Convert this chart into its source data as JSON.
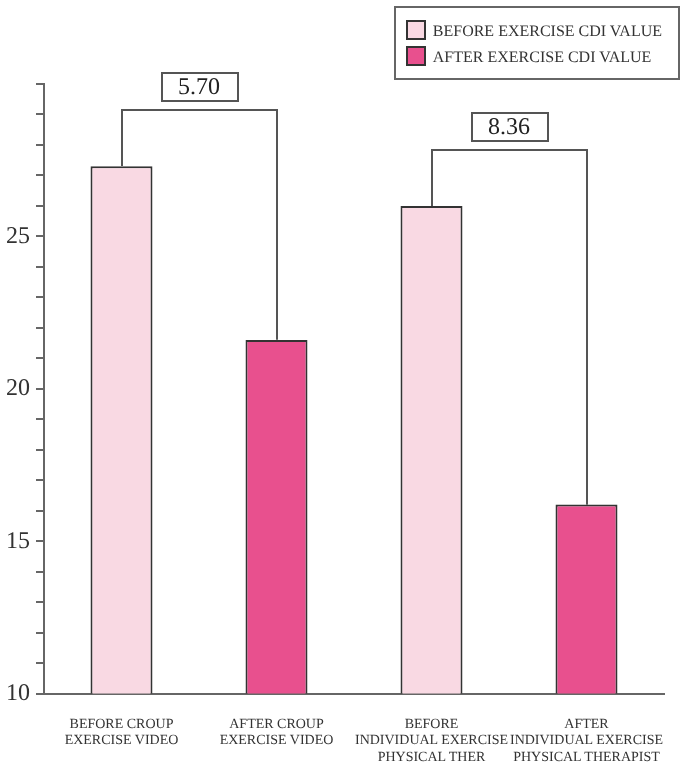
{
  "chart_data": {
    "type": "bar",
    "categories": [
      "BEFORE CROUP\nEXERCISE VIDEO",
      "AFTER CROUP\nEXERCISE VIDEO",
      "BEFORE\nINDIVIDUAL EXERCISE\nPHYSICAL THER",
      "AFTER\nINDIVIDUAL EXERCISE\nPHYSICAL THERAPIST"
    ],
    "series": [
      {
        "name": "BEFORE EXERCISE CDI VALUE",
        "color": "#f9d9e3",
        "values": [
          27.3,
          null,
          26.0,
          null
        ]
      },
      {
        "name": "AFTER EXERCISE CDI VALUE",
        "color": "#e8508e",
        "values": [
          null,
          21.6,
          null,
          16.2
        ]
      }
    ],
    "ylim": [
      10,
      30
    ],
    "yticks": [
      10,
      {
        "value": 11,
        "label": null
      },
      {
        "value": 12,
        "label": null
      },
      {
        "value": 13,
        "label": null
      },
      {
        "value": 14,
        "label": null
      },
      15,
      {
        "value": 16,
        "label": null
      },
      {
        "value": 17,
        "label": null
      },
      {
        "value": 18,
        "label": null
      },
      {
        "value": 19,
        "label": null
      },
      20,
      {
        "value": 21,
        "label": null
      },
      {
        "value": 22,
        "label": null
      },
      {
        "value": 23,
        "label": null
      },
      {
        "value": 24,
        "label": null
      },
      25,
      {
        "value": 26,
        "label": null
      },
      {
        "value": 27,
        "label": null
      },
      {
        "value": 28,
        "label": null
      },
      {
        "value": 29,
        "label": null
      },
      {
        "value": 30,
        "label": null
      }
    ],
    "annotations": [
      "5.70",
      "8.36"
    ],
    "grid": false,
    "legend": "top right"
  }
}
